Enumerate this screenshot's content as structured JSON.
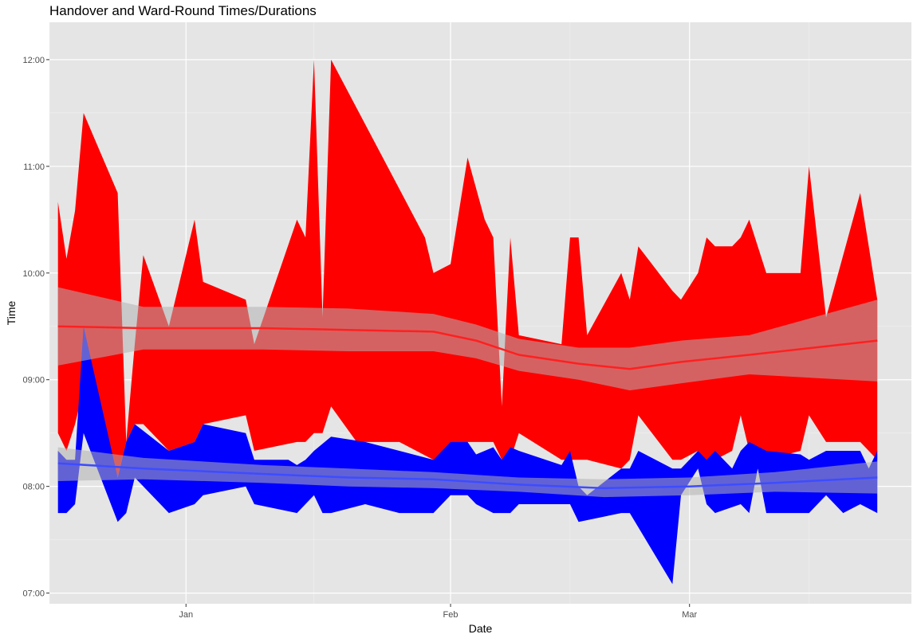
{
  "chart_data": {
    "type": "area",
    "title": "Handover and Ward-Round Times/Durations",
    "xlabel": "Date",
    "ylabel": "Time",
    "x_ticks": [
      {
        "label": "Jan",
        "date": "2019-01-01"
      },
      {
        "label": "Feb",
        "date": "2019-02-01"
      },
      {
        "label": "Mar",
        "date": "2019-03-01"
      }
    ],
    "y_ticks": [
      "07:00",
      "08:00",
      "09:00",
      "10:00",
      "11:00",
      "12:00"
    ],
    "xlim": [
      "2018-12-16",
      "2019-03-27"
    ],
    "ylim": [
      "06:54",
      "12:21"
    ],
    "grid": true,
    "background": "#e5e5e5",
    "series": [
      {
        "kind": "ribbon",
        "color": "#ff0000",
        "upper": [
          [
            "2018-12-17",
            "10:40"
          ],
          [
            "2018-12-18",
            "10:08"
          ],
          [
            "2018-12-19",
            "10:35"
          ],
          [
            "2018-12-20",
            "11:30"
          ],
          [
            "2018-12-24",
            "10:45"
          ],
          [
            "2018-12-25",
            "08:25"
          ],
          [
            "2018-12-26",
            "09:20"
          ],
          [
            "2018-12-27",
            "10:10"
          ],
          [
            "2018-12-30",
            "09:30"
          ],
          [
            "2019-01-02",
            "10:30"
          ],
          [
            "2019-01-03",
            "09:55"
          ],
          [
            "2019-01-08",
            "09:45"
          ],
          [
            "2019-01-09",
            "09:20"
          ],
          [
            "2019-01-14",
            "10:30"
          ],
          [
            "2019-01-15",
            "10:20"
          ],
          [
            "2019-01-16",
            "12:00"
          ],
          [
            "2019-01-17",
            "09:35"
          ],
          [
            "2019-01-18",
            "12:00"
          ],
          [
            "2019-01-29",
            "10:20"
          ],
          [
            "2019-01-30",
            "10:00"
          ],
          [
            "2019-02-01",
            "10:05"
          ],
          [
            "2019-02-03",
            "11:05"
          ],
          [
            "2019-02-05",
            "10:30"
          ],
          [
            "2019-02-06",
            "10:20"
          ],
          [
            "2019-02-07",
            "08:45"
          ],
          [
            "2019-02-08",
            "10:20"
          ],
          [
            "2019-02-09",
            "09:25"
          ],
          [
            "2019-02-14",
            "09:20"
          ],
          [
            "2019-02-15",
            "10:20"
          ],
          [
            "2019-02-16",
            "10:20"
          ],
          [
            "2019-02-17",
            "09:25"
          ],
          [
            "2019-02-21",
            "10:00"
          ],
          [
            "2019-02-22",
            "09:45"
          ],
          [
            "2019-02-23",
            "10:15"
          ],
          [
            "2019-02-27",
            "09:50"
          ],
          [
            "2019-02-28",
            "09:45"
          ],
          [
            "2019-03-02",
            "10:00"
          ],
          [
            "2019-03-03",
            "10:20"
          ],
          [
            "2019-03-04",
            "10:15"
          ],
          [
            "2019-03-06",
            "10:15"
          ],
          [
            "2019-03-07",
            "10:20"
          ],
          [
            "2019-03-08",
            "10:30"
          ],
          [
            "2019-03-10",
            "10:00"
          ],
          [
            "2019-03-14",
            "10:00"
          ],
          [
            "2019-03-15",
            "11:00"
          ],
          [
            "2019-03-17",
            "09:35"
          ],
          [
            "2019-03-21",
            "10:45"
          ],
          [
            "2019-03-23",
            "09:45"
          ]
        ],
        "lower": [
          [
            "2018-12-17",
            "08:30"
          ],
          [
            "2018-12-18",
            "08:20"
          ],
          [
            "2018-12-19",
            "08:35"
          ],
          [
            "2018-12-20",
            "08:55"
          ],
          [
            "2018-12-24",
            "08:05"
          ],
          [
            "2018-12-25",
            "08:25"
          ],
          [
            "2018-12-26",
            "08:35"
          ],
          [
            "2018-12-27",
            "08:35"
          ],
          [
            "2018-12-30",
            "08:20"
          ],
          [
            "2019-01-02",
            "08:25"
          ],
          [
            "2019-01-03",
            "08:35"
          ],
          [
            "2019-01-08",
            "08:40"
          ],
          [
            "2019-01-09",
            "08:20"
          ],
          [
            "2019-01-14",
            "08:25"
          ],
          [
            "2019-01-15",
            "08:25"
          ],
          [
            "2019-01-16",
            "08:30"
          ],
          [
            "2019-01-17",
            "08:30"
          ],
          [
            "2019-01-18",
            "08:45"
          ],
          [
            "2019-01-21",
            "08:25"
          ],
          [
            "2019-01-26",
            "08:25"
          ],
          [
            "2019-01-30",
            "08:15"
          ],
          [
            "2019-02-01",
            "08:20"
          ],
          [
            "2019-02-03",
            "08:25"
          ],
          [
            "2019-02-05",
            "08:25"
          ],
          [
            "2019-02-06",
            "08:25"
          ],
          [
            "2019-02-07",
            "08:15"
          ],
          [
            "2019-02-08",
            "08:15"
          ],
          [
            "2019-02-09",
            "08:30"
          ],
          [
            "2019-02-14",
            "08:15"
          ],
          [
            "2019-02-15",
            "08:15"
          ],
          [
            "2019-02-16",
            "08:15"
          ],
          [
            "2019-02-17",
            "08:15"
          ],
          [
            "2019-02-21",
            "08:10"
          ],
          [
            "2019-02-22",
            "08:15"
          ],
          [
            "2019-02-23",
            "08:40"
          ],
          [
            "2019-02-27",
            "08:15"
          ],
          [
            "2019-02-28",
            "08:15"
          ],
          [
            "2019-03-02",
            "08:20"
          ],
          [
            "2019-03-03",
            "08:05"
          ],
          [
            "2019-03-04",
            "08:15"
          ],
          [
            "2019-03-06",
            "08:20"
          ],
          [
            "2019-03-07",
            "08:40"
          ],
          [
            "2019-03-08",
            "08:20"
          ],
          [
            "2019-03-10",
            "08:15"
          ],
          [
            "2019-03-14",
            "08:20"
          ],
          [
            "2019-03-15",
            "08:40"
          ],
          [
            "2019-03-17",
            "08:25"
          ],
          [
            "2019-03-21",
            "08:25"
          ],
          [
            "2019-03-23",
            "08:15"
          ]
        ]
      },
      {
        "kind": "ribbon",
        "color": "#0000ff",
        "upper": [
          [
            "2018-12-17",
            "08:20"
          ],
          [
            "2018-12-18",
            "08:15"
          ],
          [
            "2018-12-19",
            "08:15"
          ],
          [
            "2018-12-20",
            "09:30"
          ],
          [
            "2018-12-24",
            "08:05"
          ],
          [
            "2018-12-25",
            "08:25"
          ],
          [
            "2018-12-26",
            "08:35"
          ],
          [
            "2018-12-30",
            "08:20"
          ],
          [
            "2019-01-02",
            "08:25"
          ],
          [
            "2019-01-03",
            "08:35"
          ],
          [
            "2019-01-08",
            "08:30"
          ],
          [
            "2019-01-09",
            "08:15"
          ],
          [
            "2019-01-13",
            "08:15"
          ],
          [
            "2019-01-14",
            "08:12"
          ],
          [
            "2019-01-15",
            "08:15"
          ],
          [
            "2019-01-16",
            "08:20"
          ],
          [
            "2019-01-18",
            "08:28"
          ],
          [
            "2019-01-22",
            "08:25"
          ],
          [
            "2019-01-30",
            "08:15"
          ],
          [
            "2019-02-01",
            "08:25"
          ],
          [
            "2019-02-03",
            "08:25"
          ],
          [
            "2019-02-04",
            "08:18"
          ],
          [
            "2019-02-06",
            "08:22"
          ],
          [
            "2019-02-07",
            "08:15"
          ],
          [
            "2019-02-08",
            "08:22"
          ],
          [
            "2019-02-09",
            "08:20"
          ],
          [
            "2019-02-14",
            "08:12"
          ],
          [
            "2019-02-15",
            "08:20"
          ],
          [
            "2019-02-16",
            "08:00"
          ],
          [
            "2019-02-17",
            "07:55"
          ],
          [
            "2019-02-21",
            "08:10"
          ],
          [
            "2019-02-22",
            "08:10"
          ],
          [
            "2019-02-23",
            "08:20"
          ],
          [
            "2019-02-27",
            "08:10"
          ],
          [
            "2019-02-28",
            "08:10"
          ],
          [
            "2019-03-02",
            "08:20"
          ],
          [
            "2019-03-03",
            "08:15"
          ],
          [
            "2019-03-04",
            "08:20"
          ],
          [
            "2019-03-06",
            "08:10"
          ],
          [
            "2019-03-07",
            "08:20"
          ],
          [
            "2019-03-08",
            "08:25"
          ],
          [
            "2019-03-10",
            "08:20"
          ],
          [
            "2019-03-14",
            "08:18"
          ],
          [
            "2019-03-15",
            "08:15"
          ],
          [
            "2019-03-17",
            "08:20"
          ],
          [
            "2019-03-21",
            "08:20"
          ],
          [
            "2019-03-22",
            "08:10"
          ],
          [
            "2019-03-23",
            "08:20"
          ]
        ],
        "lower": [
          [
            "2018-12-17",
            "07:45"
          ],
          [
            "2018-12-18",
            "07:45"
          ],
          [
            "2018-12-19",
            "07:50"
          ],
          [
            "2018-12-20",
            "08:30"
          ],
          [
            "2018-12-24",
            "07:40"
          ],
          [
            "2018-12-25",
            "07:45"
          ],
          [
            "2018-12-26",
            "08:05"
          ],
          [
            "2018-12-30",
            "07:45"
          ],
          [
            "2019-01-02",
            "07:50"
          ],
          [
            "2019-01-03",
            "07:55"
          ],
          [
            "2019-01-08",
            "08:00"
          ],
          [
            "2019-01-09",
            "07:50"
          ],
          [
            "2019-01-14",
            "07:45"
          ],
          [
            "2019-01-16",
            "07:55"
          ],
          [
            "2019-01-17",
            "07:45"
          ],
          [
            "2019-01-18",
            "07:45"
          ],
          [
            "2019-01-22",
            "07:50"
          ],
          [
            "2019-01-26",
            "07:45"
          ],
          [
            "2019-01-30",
            "07:45"
          ],
          [
            "2019-02-01",
            "07:55"
          ],
          [
            "2019-02-03",
            "07:55"
          ],
          [
            "2019-02-04",
            "07:50"
          ],
          [
            "2019-02-06",
            "07:45"
          ],
          [
            "2019-02-08",
            "07:45"
          ],
          [
            "2019-02-09",
            "07:50"
          ],
          [
            "2019-02-14",
            "07:50"
          ],
          [
            "2019-02-15",
            "07:50"
          ],
          [
            "2019-02-16",
            "07:40"
          ],
          [
            "2019-02-21",
            "07:45"
          ],
          [
            "2019-02-22",
            "07:45"
          ],
          [
            "2019-02-27",
            "07:05"
          ],
          [
            "2019-02-28",
            "07:55"
          ],
          [
            "2019-03-02",
            "08:10"
          ],
          [
            "2019-03-03",
            "07:50"
          ],
          [
            "2019-03-04",
            "07:45"
          ],
          [
            "2019-03-07",
            "07:50"
          ],
          [
            "2019-03-08",
            "07:45"
          ],
          [
            "2019-03-09",
            "08:10"
          ],
          [
            "2019-03-10",
            "07:45"
          ],
          [
            "2019-03-14",
            "07:45"
          ],
          [
            "2019-03-15",
            "07:45"
          ],
          [
            "2019-03-17",
            "07:55"
          ],
          [
            "2019-03-19",
            "07:45"
          ],
          [
            "2019-03-21",
            "07:50"
          ],
          [
            "2019-03-23",
            "07:45"
          ]
        ]
      },
      {
        "kind": "smooth",
        "color": "#ff2020",
        "band_color": "#b3b3b3",
        "fit": [
          [
            "2018-12-17",
            "09:30"
          ],
          [
            "2018-12-27",
            "09:29"
          ],
          [
            "2019-01-10",
            "09:29"
          ],
          [
            "2019-01-20",
            "09:28"
          ],
          [
            "2019-01-30",
            "09:27"
          ],
          [
            "2019-02-04",
            "09:22"
          ],
          [
            "2019-02-09",
            "09:14"
          ],
          [
            "2019-02-16",
            "09:09"
          ],
          [
            "2019-02-22",
            "09:06"
          ],
          [
            "2019-02-28",
            "09:10"
          ],
          [
            "2019-03-08",
            "09:14"
          ],
          [
            "2019-03-23",
            "09:22"
          ]
        ],
        "upper": [
          [
            "2018-12-17",
            "09:52"
          ],
          [
            "2018-12-27",
            "09:41"
          ],
          [
            "2019-01-10",
            "09:41"
          ],
          [
            "2019-01-20",
            "09:40"
          ],
          [
            "2019-01-30",
            "09:37"
          ],
          [
            "2019-02-04",
            "09:31"
          ],
          [
            "2019-02-09",
            "09:23"
          ],
          [
            "2019-02-16",
            "09:18"
          ],
          [
            "2019-02-22",
            "09:18"
          ],
          [
            "2019-02-28",
            "09:22"
          ],
          [
            "2019-03-08",
            "09:25"
          ],
          [
            "2019-03-23",
            "09:45"
          ]
        ],
        "lower": [
          [
            "2018-12-17",
            "09:08"
          ],
          [
            "2018-12-27",
            "09:17"
          ],
          [
            "2019-01-10",
            "09:17"
          ],
          [
            "2019-01-20",
            "09:16"
          ],
          [
            "2019-01-30",
            "09:16"
          ],
          [
            "2019-02-04",
            "09:12"
          ],
          [
            "2019-02-09",
            "09:05"
          ],
          [
            "2019-02-16",
            "09:00"
          ],
          [
            "2019-02-22",
            "08:54"
          ],
          [
            "2019-02-28",
            "08:58"
          ],
          [
            "2019-03-08",
            "09:03"
          ],
          [
            "2019-03-23",
            "08:59"
          ]
        ]
      },
      {
        "kind": "smooth",
        "color": "#3d4cff",
        "band_color": "#b3b3b3",
        "fit": [
          [
            "2018-12-17",
            "08:13"
          ],
          [
            "2018-12-27",
            "08:10"
          ],
          [
            "2019-01-10",
            "08:07"
          ],
          [
            "2019-01-20",
            "08:05"
          ],
          [
            "2019-01-30",
            "08:04"
          ],
          [
            "2019-02-09",
            "08:01"
          ],
          [
            "2019-02-19",
            "07:59"
          ],
          [
            "2019-03-01",
            "08:00"
          ],
          [
            "2019-03-11",
            "08:02"
          ],
          [
            "2019-03-23",
            "08:05"
          ]
        ],
        "upper": [
          [
            "2018-12-17",
            "08:22"
          ],
          [
            "2018-12-27",
            "08:16"
          ],
          [
            "2019-01-10",
            "08:12"
          ],
          [
            "2019-01-20",
            "08:10"
          ],
          [
            "2019-01-30",
            "08:08"
          ],
          [
            "2019-02-09",
            "08:05"
          ],
          [
            "2019-02-19",
            "08:04"
          ],
          [
            "2019-03-01",
            "08:05"
          ],
          [
            "2019-03-11",
            "08:08"
          ],
          [
            "2019-03-23",
            "08:14"
          ]
        ],
        "lower": [
          [
            "2018-12-17",
            "08:03"
          ],
          [
            "2018-12-27",
            "08:04"
          ],
          [
            "2019-01-10",
            "08:02"
          ],
          [
            "2019-01-20",
            "08:00"
          ],
          [
            "2019-01-30",
            "07:59"
          ],
          [
            "2019-02-09",
            "07:57"
          ],
          [
            "2019-02-19",
            "07:54"
          ],
          [
            "2019-03-01",
            "07:55"
          ],
          [
            "2019-03-11",
            "07:57"
          ],
          [
            "2019-03-23",
            "07:56"
          ]
        ]
      }
    ]
  }
}
